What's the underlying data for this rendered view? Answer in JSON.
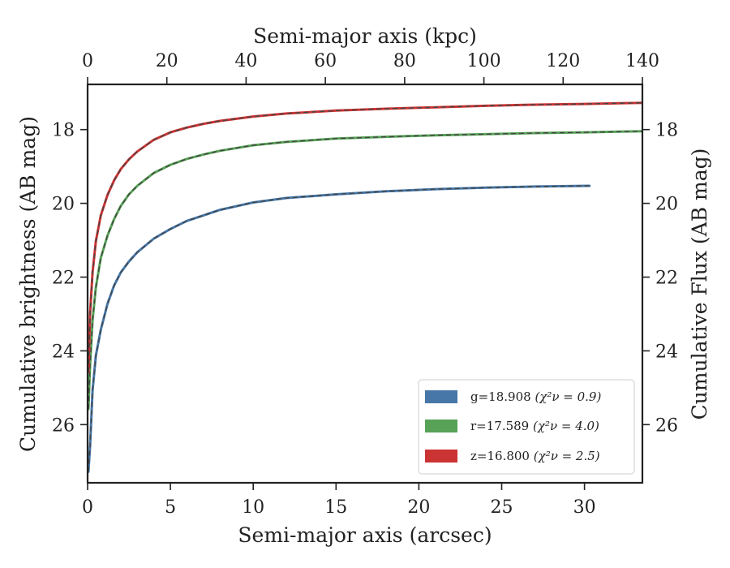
{
  "chart_data": {
    "type": "line",
    "xlabel": "Semi-major axis (arcsec)",
    "x2label": "Semi-major axis (kpc)",
    "ylabel": "Cumulative brightness (AB mag)",
    "y2label": "Cumulative Flux (AB mag)",
    "xlim": [
      0,
      33.5
    ],
    "x2lim": [
      0,
      140
    ],
    "ylim": [
      27.6,
      16.8
    ],
    "y_inverted": true,
    "xticks": [
      "0",
      "5",
      "10",
      "15",
      "20",
      "25",
      "30"
    ],
    "x2ticks": [
      "0",
      "20",
      "40",
      "60",
      "80",
      "100",
      "120",
      "140"
    ],
    "yticks": [
      "18",
      "20",
      "22",
      "24",
      "26"
    ],
    "legend_position": "lower-right",
    "series": [
      {
        "name": "g=18.908",
        "chi2_label": "(χ²ν = 0.9)",
        "color": "#4677a8",
        "x": [
          0.05,
          0.15,
          0.3,
          0.5,
          0.8,
          1.2,
          1.6,
          2.0,
          2.5,
          3.0,
          4.0,
          5.0,
          6.0,
          7.0,
          8.0,
          10.0,
          12.0,
          15.0,
          18.0,
          21.0,
          24.0,
          27.0,
          30.3
        ],
        "y": [
          27.3,
          26.6,
          25.1,
          24.15,
          23.45,
          22.75,
          22.25,
          21.9,
          21.6,
          21.35,
          20.98,
          20.72,
          20.5,
          20.35,
          20.2,
          20.0,
          19.88,
          19.78,
          19.7,
          19.64,
          19.6,
          19.57,
          19.55
        ]
      },
      {
        "name": "r=17.589",
        "chi2_label": "(χ²ν = 4.0)",
        "color": "#57a257",
        "x": [
          0.05,
          0.15,
          0.3,
          0.5,
          0.8,
          1.2,
          1.6,
          2.0,
          2.5,
          3.0,
          4.0,
          5.0,
          6.0,
          7.0,
          8.0,
          10.0,
          12.0,
          15.0,
          18.0,
          21.0,
          24.0,
          27.0,
          30.0,
          33.5
        ],
        "y": [
          25.6,
          24.4,
          23.2,
          22.3,
          21.5,
          20.9,
          20.45,
          20.1,
          19.78,
          19.55,
          19.2,
          18.98,
          18.82,
          18.7,
          18.6,
          18.45,
          18.36,
          18.27,
          18.22,
          18.18,
          18.15,
          18.12,
          18.1,
          18.07
        ]
      },
      {
        "name": "z=16.800",
        "chi2_label": "(χ²ν = 2.5)",
        "color": "#cc3333",
        "x": [
          0.05,
          0.15,
          0.3,
          0.5,
          0.8,
          1.2,
          1.6,
          2.0,
          2.5,
          3.0,
          4.0,
          5.0,
          6.0,
          7.0,
          8.0,
          10.0,
          12.0,
          15.0,
          18.0,
          21.0,
          24.0,
          27.0,
          30.0,
          33.5
        ],
        "y": [
          24.6,
          23.0,
          21.9,
          21.05,
          20.35,
          19.8,
          19.4,
          19.1,
          18.83,
          18.62,
          18.3,
          18.1,
          17.97,
          17.87,
          17.79,
          17.67,
          17.59,
          17.51,
          17.46,
          17.42,
          17.38,
          17.35,
          17.33,
          17.3
        ]
      }
    ]
  }
}
